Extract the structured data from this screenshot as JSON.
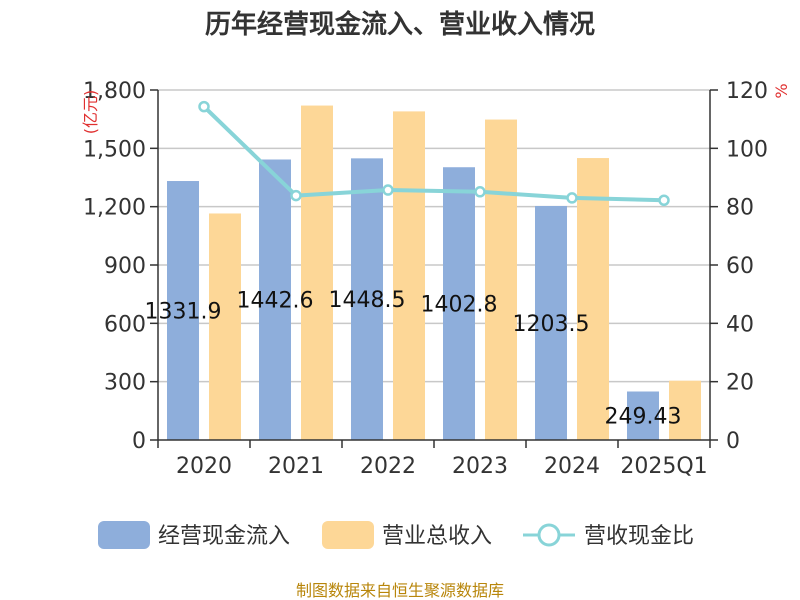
{
  "chart_data": {
    "type": "bar",
    "title": "历年经营现金流入、营业收入情况",
    "categories": [
      "2020",
      "2021",
      "2022",
      "2023",
      "2024",
      "2025Q1"
    ],
    "y_left": {
      "unit": "(亿元)",
      "ylim": [
        0,
        1800
      ],
      "ticks": [
        "0",
        "300",
        "600",
        "900",
        "1,200",
        "1,500",
        "1,800"
      ],
      "tick_values": [
        0,
        300,
        600,
        900,
        1200,
        1500,
        1800
      ]
    },
    "y_right": {
      "unit": "%",
      "ylim": [
        0,
        120
      ],
      "ticks": [
        "0",
        "20",
        "40",
        "60",
        "80",
        "100",
        "120"
      ],
      "tick_values": [
        0,
        20,
        40,
        60,
        80,
        100,
        120
      ]
    },
    "series": [
      {
        "name": "经营现金流入",
        "type": "bar",
        "axis": "left",
        "color": "#8eaedb",
        "values": [
          1331.9,
          1442.6,
          1448.5,
          1402.8,
          1203.5,
          249.43
        ],
        "labels": [
          "1331.9",
          "1442.6",
          "1448.5",
          "1402.8",
          "1203.5",
          "249.43"
        ]
      },
      {
        "name": "营业总收入",
        "type": "bar",
        "axis": "left",
        "color": "#fdd797",
        "values": [
          1165,
          1720,
          1690,
          1648,
          1450,
          305
        ]
      },
      {
        "name": "营收现金比",
        "type": "line",
        "axis": "right",
        "color": "#88d4d8",
        "values": [
          114.3,
          83.8,
          85.7,
          85.1,
          83.0,
          82.2
        ]
      }
    ],
    "grid": true,
    "legend": "bottom"
  },
  "source": "制图数据来自恒生聚源数据库"
}
